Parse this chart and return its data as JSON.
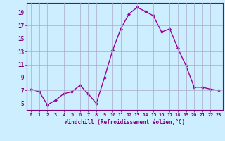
{
  "x": [
    0,
    1,
    2,
    3,
    4,
    5,
    6,
    7,
    8,
    9,
    10,
    11,
    12,
    13,
    14,
    15,
    16,
    17,
    18,
    19,
    20,
    21,
    22,
    23
  ],
  "y": [
    7.2,
    6.8,
    4.8,
    5.5,
    6.5,
    6.8,
    7.8,
    6.5,
    5.0,
    9.0,
    13.2,
    16.5,
    18.8,
    19.8,
    19.2,
    18.5,
    16.0,
    16.5,
    13.5,
    10.8,
    7.5,
    7.5,
    7.2,
    7.0
  ],
  "xlabel": "Windchill (Refroidissement éolien,°C)",
  "xlim": [
    -0.5,
    23.5
  ],
  "ylim": [
    4.0,
    20.5
  ],
  "yticks": [
    5,
    7,
    9,
    11,
    13,
    15,
    17,
    19
  ],
  "xticks": [
    0,
    1,
    2,
    3,
    4,
    5,
    6,
    7,
    8,
    9,
    10,
    11,
    12,
    13,
    14,
    15,
    16,
    17,
    18,
    19,
    20,
    21,
    22,
    23
  ],
  "line_color": "#990099",
  "marker_color": "#990099",
  "bg_color": "#cceeff",
  "grid_color": "#aaaacc",
  "border_color": "#800080",
  "label_color": "#800080",
  "tick_color": "#800080",
  "figsize": [
    3.2,
    2.0
  ],
  "dpi": 100
}
